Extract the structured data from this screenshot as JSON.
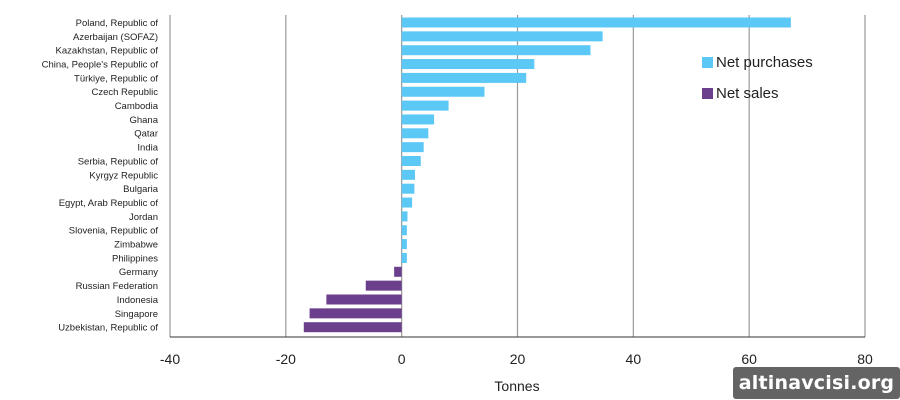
{
  "chart_data": {
    "type": "bar",
    "orientation": "horizontal",
    "categories": [
      "Poland, Republic of",
      "Azerbaijan (SOFAZ)",
      "Kazakhstan, Republic of",
      "China, People's Republic of",
      "Türkiye, Republic of",
      "Czech Republic",
      "Cambodia",
      "Ghana",
      "Qatar",
      "India",
      "Serbia, Republic of",
      "Kyrgyz Republic",
      "Bulgaria",
      "Egypt, Arab Republic of",
      "Jordan",
      "Slovenia, Republic of",
      "Zimbabwe",
      "Philippines",
      "Germany",
      "Russian Federation",
      "Indonesia",
      "Singapore",
      "Uzbekistan, Republic of"
    ],
    "values": [
      67.2,
      34.7,
      32.6,
      22.9,
      21.5,
      14.3,
      8.1,
      5.6,
      4.6,
      3.8,
      3.3,
      2.3,
      2.2,
      1.8,
      1.0,
      0.9,
      0.9,
      0.9,
      -1.3,
      -6.2,
      -13.0,
      -15.9,
      -16.9
    ],
    "series": [
      {
        "name": "Net purchases",
        "color": "#5bc8f5"
      },
      {
        "name": "Net sales",
        "color": "#6b3f8c"
      }
    ],
    "xlabel": "Tonnes",
    "xlim": [
      -40,
      80
    ],
    "xticks": [
      -40,
      -20,
      0,
      20,
      40,
      60,
      80
    ],
    "grid": true,
    "legend_position": "top-right"
  },
  "watermark": {
    "text": "altinavcisi.org"
  }
}
